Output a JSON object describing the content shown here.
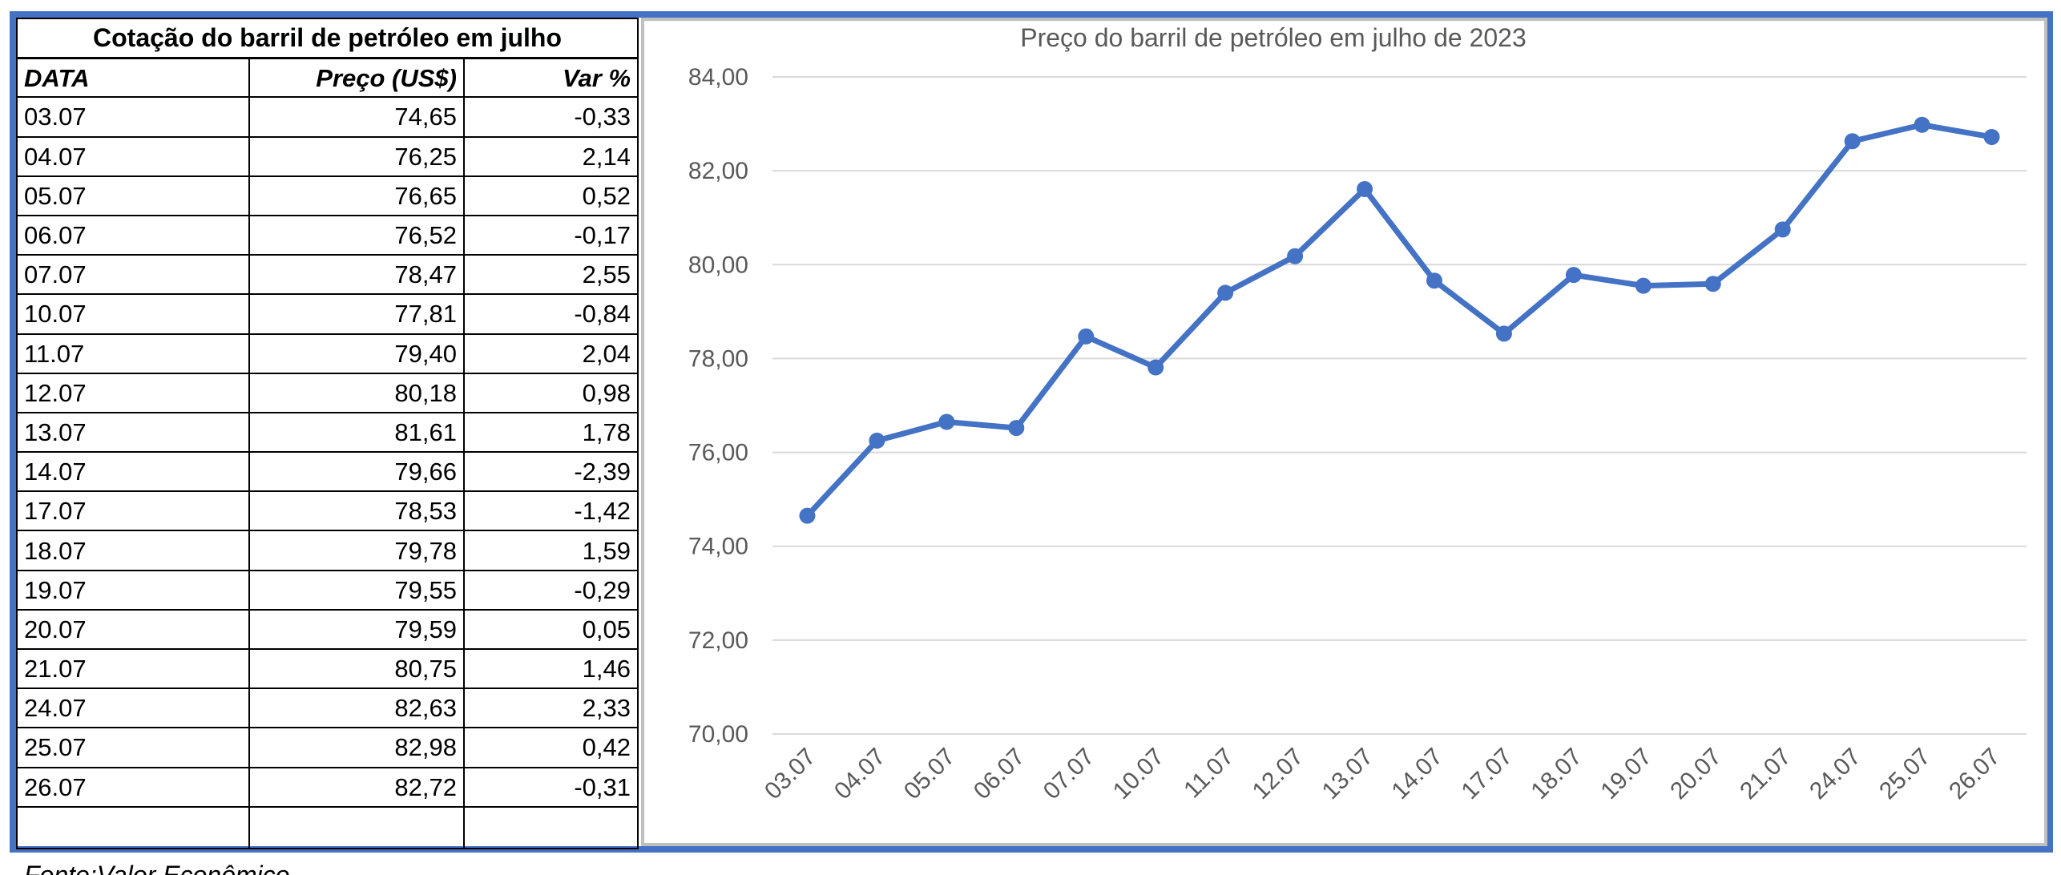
{
  "table": {
    "title": "Cotação do barril de petróleo em julho",
    "headers": [
      "DATA",
      "Preço (US$)",
      "Var %"
    ],
    "rows": [
      [
        "03.07",
        "74,65",
        "-0,33"
      ],
      [
        "04.07",
        "76,25",
        "2,14"
      ],
      [
        "05.07",
        "76,65",
        "0,52"
      ],
      [
        "06.07",
        "76,52",
        "-0,17"
      ],
      [
        "07.07",
        "78,47",
        "2,55"
      ],
      [
        "10.07",
        "77,81",
        "-0,84"
      ],
      [
        "11.07",
        "79,40",
        "2,04"
      ],
      [
        "12.07",
        "80,18",
        "0,98"
      ],
      [
        "13.07",
        "81,61",
        "1,78"
      ],
      [
        "14.07",
        "79,66",
        "-2,39"
      ],
      [
        "17.07",
        "78,53",
        "-1,42"
      ],
      [
        "18.07",
        "79,78",
        "1,59"
      ],
      [
        "19.07",
        "79,55",
        "-0,29"
      ],
      [
        "20.07",
        "79,59",
        "0,05"
      ],
      [
        "21.07",
        "80,75",
        "1,46"
      ],
      [
        "24.07",
        "82,63",
        "2,33"
      ],
      [
        "25.07",
        "82,98",
        "0,42"
      ],
      [
        "26.07",
        "82,72",
        "-0,31"
      ]
    ]
  },
  "source": "Fonte:Valor Econômico",
  "colors": {
    "frame": "#4472C4",
    "series": "#4472C4",
    "grid": "#D9D9D9",
    "text": "#595959"
  },
  "chart_data": {
    "type": "line",
    "title": "Preço do barril de petróleo em julho de 2023",
    "xlabel": "",
    "ylabel": "",
    "categories": [
      "03.07",
      "04.07",
      "05.07",
      "06.07",
      "07.07",
      "10.07",
      "11.07",
      "12.07",
      "13.07",
      "14.07",
      "17.07",
      "18.07",
      "19.07",
      "20.07",
      "21.07",
      "24.07",
      "25.07",
      "26.07"
    ],
    "series": [
      {
        "values": [
          74.65,
          76.25,
          76.65,
          76.52,
          78.47,
          77.81,
          79.4,
          80.18,
          81.61,
          79.66,
          78.53,
          79.78,
          79.55,
          79.59,
          80.75,
          82.63,
          82.98,
          82.72
        ]
      }
    ],
    "ylim": [
      70,
      84
    ],
    "yticks": [
      "70,00",
      "72,00",
      "74,00",
      "76,00",
      "78,00",
      "80,00",
      "82,00",
      "84,00"
    ],
    "grid": true,
    "markers": true,
    "legend": "none"
  }
}
